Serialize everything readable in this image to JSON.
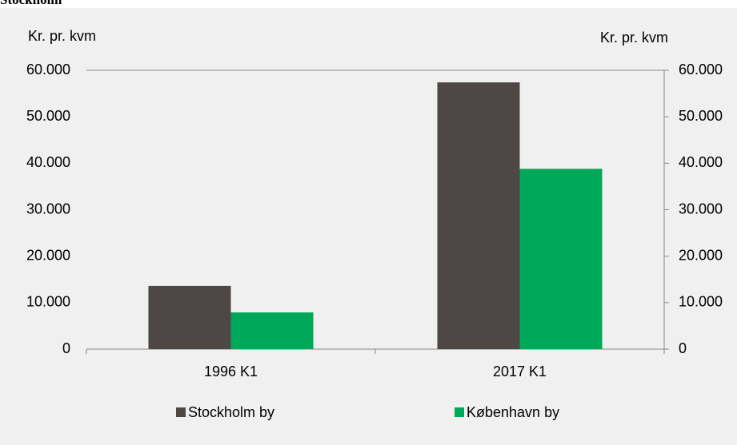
{
  "chart_data": {
    "type": "bar",
    "title": "Stockholm",
    "y_label": "Kr. pr. kvm",
    "y2_label": "Kr. pr. kvm",
    "categories": [
      "1996 K1",
      "2017 K1"
    ],
    "series": [
      {
        "name": "Stockholm by",
        "color": "#4d4845",
        "values": [
          13600,
          57400
        ]
      },
      {
        "name": "København by",
        "color": "#00a859",
        "values": [
          7900,
          38800
        ]
      }
    ],
    "ylim": [
      0,
      60000
    ],
    "yticks": [
      0,
      {
        "value": 10000,
        "label": "10.000"
      },
      {
        "value": 20000,
        "label": "20.000"
      },
      {
        "value": 30000,
        "label": "30.000"
      },
      {
        "value": 40000,
        "label": "40.000"
      },
      {
        "value": 50000,
        "label": "50.000"
      },
      {
        "value": 60000,
        "label": "60.000"
      }
    ],
    "y2lim": [
      0,
      60000
    ],
    "y2ticks": [
      0,
      {
        "value": 10000,
        "label": "10.000"
      },
      {
        "value": 20000,
        "label": "20.000"
      },
      {
        "value": 30000,
        "label": "30.000"
      },
      {
        "value": 40000,
        "label": "40.000"
      },
      {
        "value": 50000,
        "label": "50.000"
      },
      {
        "value": 60000,
        "label": "60.000"
      }
    ],
    "grid": false,
    "legend": "bottom"
  }
}
